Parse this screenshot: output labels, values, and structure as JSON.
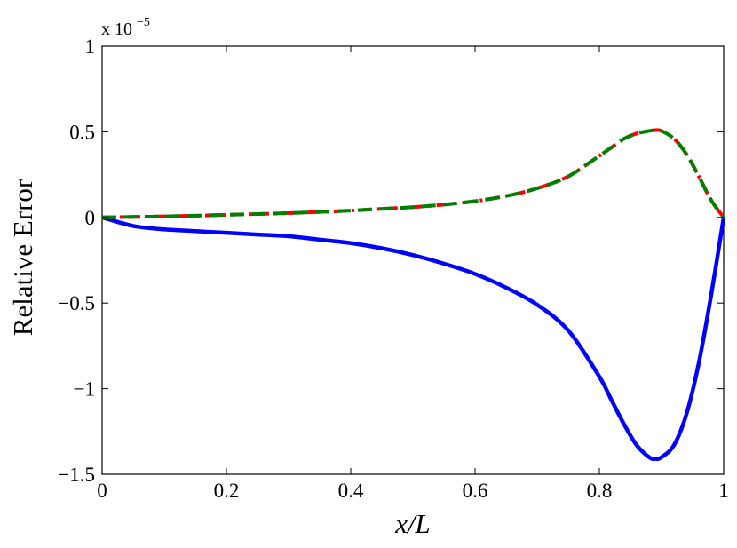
{
  "chart_data": {
    "type": "line",
    "xlabel": "x/L",
    "ylabel": "Relative Error",
    "y_multiplier_base": "x 10",
    "y_multiplier_exponent": "−5",
    "xlim": [
      0,
      1
    ],
    "ylim": [
      -1.5,
      1
    ],
    "x_ticks": [
      {
        "value": 0,
        "label": "0"
      },
      {
        "value": 0.2,
        "label": "0.2"
      },
      {
        "value": 0.4,
        "label": "0.4"
      },
      {
        "value": 0.6,
        "label": "0.6"
      },
      {
        "value": 0.8,
        "label": "0.8"
      },
      {
        "value": 1,
        "label": "1"
      }
    ],
    "y_ticks": [
      {
        "value": -1.5,
        "label": "−1.5"
      },
      {
        "value": -1,
        "label": "−1"
      },
      {
        "value": -0.5,
        "label": "−0.5"
      },
      {
        "value": 0,
        "label": "0"
      },
      {
        "value": 0.5,
        "label": "0.5"
      },
      {
        "value": 1,
        "label": "1"
      }
    ],
    "grid": false,
    "legend": "none",
    "x": [
      0,
      0.05,
      0.1,
      0.15,
      0.2,
      0.25,
      0.3,
      0.35,
      0.4,
      0.45,
      0.5,
      0.55,
      0.6,
      0.65,
      0.7,
      0.75,
      0.8,
      0.82,
      0.84,
      0.86,
      0.88,
      0.89,
      0.9,
      0.92,
      0.94,
      0.96,
      0.98,
      1.0
    ],
    "series": [
      {
        "color": "#0000ff",
        "style": "solid",
        "values": [
          0,
          -0.05,
          -0.07,
          -0.08,
          -0.09,
          -0.1,
          -0.11,
          -0.13,
          -0.15,
          -0.18,
          -0.22,
          -0.27,
          -0.33,
          -0.41,
          -0.51,
          -0.66,
          -0.93,
          -1.07,
          -1.21,
          -1.33,
          -1.4,
          -1.41,
          -1.4,
          -1.33,
          -1.15,
          -0.85,
          -0.45,
          0
        ]
      },
      {
        "color": "#ff0000",
        "style": "dashdot",
        "values": [
          0,
          0.003,
          0.006,
          0.01,
          0.015,
          0.02,
          0.025,
          0.032,
          0.04,
          0.05,
          0.06,
          0.075,
          0.095,
          0.125,
          0.17,
          0.24,
          0.36,
          0.41,
          0.46,
          0.49,
          0.505,
          0.51,
          0.505,
          0.46,
          0.37,
          0.24,
          0.1,
          0
        ]
      },
      {
        "color": "#008000",
        "style": "dashed",
        "values": [
          0,
          0.003,
          0.006,
          0.01,
          0.015,
          0.02,
          0.025,
          0.032,
          0.04,
          0.05,
          0.06,
          0.075,
          0.095,
          0.125,
          0.17,
          0.24,
          0.36,
          0.41,
          0.46,
          0.49,
          0.505,
          0.51,
          0.505,
          0.46,
          0.37,
          0.24,
          0.1,
          0
        ]
      }
    ]
  }
}
